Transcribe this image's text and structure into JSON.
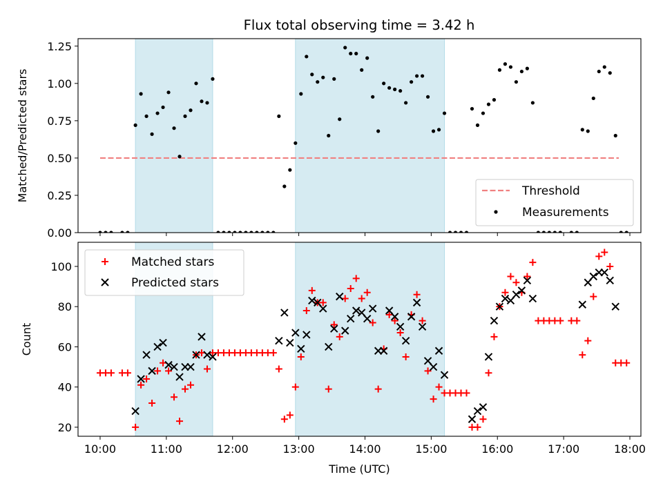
{
  "title": "Flux total observing time = 3.42 h",
  "shade_color": "#add8e6",
  "threshold_color": "#f08080",
  "matched_color": "#ff0000",
  "predicted_color": "#000000",
  "chart_data": [
    {
      "type": "scatter",
      "title": "Flux total observing time = 3.42 h",
      "xlabel": "",
      "ylabel": "Matched/Predicted stars",
      "xlim": [
        "09:40",
        "18:10"
      ],
      "ylim": [
        0,
        1.3
      ],
      "xticks": [
        "10:00",
        "11:00",
        "12:00",
        "13:00",
        "14:00",
        "15:00",
        "16:00",
        "17:00",
        "18:00"
      ],
      "yticks": [
        "0.00",
        "0.25",
        "0.50",
        "0.75",
        "1.00",
        "1.25"
      ],
      "shaded_intervals": [
        [
          "10:32",
          "11:42"
        ],
        [
          "12:57",
          "15:12"
        ]
      ],
      "legend": {
        "placement": "lower-right",
        "entries": [
          "Threshold",
          "Measurements"
        ]
      },
      "threshold": {
        "name": "Threshold",
        "y": 0.5,
        "x": [
          "10:00",
          "17:50"
        ]
      },
      "series": [
        {
          "name": "Measurements",
          "points": [
            [
              "10:00",
              0.0
            ],
            [
              "10:05",
              0.0
            ],
            [
              "10:10",
              0.0
            ],
            [
              "10:20",
              0.0
            ],
            [
              "10:25",
              0.0
            ],
            [
              "10:32",
              0.72
            ],
            [
              "10:37",
              0.93
            ],
            [
              "10:42",
              0.78
            ],
            [
              "10:47",
              0.66
            ],
            [
              "10:52",
              0.8
            ],
            [
              "10:57",
              0.84
            ],
            [
              "11:02",
              0.94
            ],
            [
              "11:07",
              0.7
            ],
            [
              "11:12",
              0.51
            ],
            [
              "11:17",
              0.78
            ],
            [
              "11:22",
              0.82
            ],
            [
              "11:27",
              1.0
            ],
            [
              "11:32",
              0.88
            ],
            [
              "11:37",
              0.87
            ],
            [
              "11:42",
              1.03
            ],
            [
              "11:47",
              0.0
            ],
            [
              "11:52",
              0.0
            ],
            [
              "11:57",
              0.0
            ],
            [
              "12:02",
              0.0
            ],
            [
              "12:07",
              0.0
            ],
            [
              "12:12",
              0.0
            ],
            [
              "12:17",
              0.0
            ],
            [
              "12:22",
              0.0
            ],
            [
              "12:27",
              0.0
            ],
            [
              "12:32",
              0.0
            ],
            [
              "12:37",
              0.0
            ],
            [
              "12:42",
              0.78
            ],
            [
              "12:47",
              0.31
            ],
            [
              "12:52",
              0.42
            ],
            [
              "12:57",
              0.6
            ],
            [
              "13:02",
              0.93
            ],
            [
              "13:07",
              1.18
            ],
            [
              "13:12",
              1.06
            ],
            [
              "13:17",
              1.01
            ],
            [
              "13:22",
              1.04
            ],
            [
              "13:27",
              0.65
            ],
            [
              "13:32",
              1.03
            ],
            [
              "13:37",
              0.76
            ],
            [
              "13:42",
              1.24
            ],
            [
              "13:47",
              1.2
            ],
            [
              "13:52",
              1.2
            ],
            [
              "13:57",
              1.09
            ],
            [
              "14:02",
              1.17
            ],
            [
              "14:07",
              0.91
            ],
            [
              "14:12",
              0.68
            ],
            [
              "14:17",
              1.0
            ],
            [
              "14:22",
              0.97
            ],
            [
              "14:27",
              0.96
            ],
            [
              "14:32",
              0.95
            ],
            [
              "14:37",
              0.87
            ],
            [
              "14:42",
              1.01
            ],
            [
              "14:47",
              1.05
            ],
            [
              "14:52",
              1.05
            ],
            [
              "14:57",
              0.91
            ],
            [
              "15:02",
              0.68
            ],
            [
              "15:07",
              0.69
            ],
            [
              "15:12",
              0.8
            ],
            [
              "15:17",
              0.0
            ],
            [
              "15:22",
              0.0
            ],
            [
              "15:27",
              0.0
            ],
            [
              "15:32",
              0.0
            ],
            [
              "15:37",
              0.83
            ],
            [
              "15:42",
              0.72
            ],
            [
              "15:47",
              0.8
            ],
            [
              "15:52",
              0.86
            ],
            [
              "15:57",
              0.89
            ],
            [
              "16:02",
              1.09
            ],
            [
              "16:07",
              1.13
            ],
            [
              "16:12",
              1.11
            ],
            [
              "16:17",
              1.01
            ],
            [
              "16:22",
              1.08
            ],
            [
              "16:27",
              1.1
            ],
            [
              "16:32",
              0.87
            ],
            [
              "16:37",
              0.0
            ],
            [
              "16:42",
              0.0
            ],
            [
              "16:47",
              0.0
            ],
            [
              "16:52",
              0.0
            ],
            [
              "16:57",
              0.0
            ],
            [
              "17:07",
              0.0
            ],
            [
              "17:12",
              0.0
            ],
            [
              "17:17",
              0.69
            ],
            [
              "17:22",
              0.68
            ],
            [
              "17:27",
              0.9
            ],
            [
              "17:32",
              1.08
            ],
            [
              "17:37",
              1.11
            ],
            [
              "17:42",
              1.07
            ],
            [
              "17:47",
              0.65
            ],
            [
              "17:52",
              0.0
            ],
            [
              "17:57",
              0.0
            ]
          ]
        }
      ]
    },
    {
      "type": "scatter",
      "title": "",
      "xlabel": "Time (UTC)",
      "ylabel": "Count",
      "xlim": [
        "09:40",
        "18:10"
      ],
      "ylim": [
        15.5,
        112
      ],
      "xticks": [
        "10:00",
        "11:00",
        "12:00",
        "13:00",
        "14:00",
        "15:00",
        "16:00",
        "17:00",
        "18:00"
      ],
      "yticks": [
        "20",
        "40",
        "60",
        "80",
        "100"
      ],
      "shaded_intervals": [
        [
          "10:32",
          "11:42"
        ],
        [
          "12:57",
          "15:12"
        ]
      ],
      "legend": {
        "placement": "upper-left",
        "entries": [
          "Matched stars",
          "Predicted stars"
        ]
      },
      "series": [
        {
          "name": "Matched stars",
          "marker": "plus",
          "points": [
            [
              "10:00",
              47
            ],
            [
              "10:05",
              47
            ],
            [
              "10:10",
              47
            ],
            [
              "10:20",
              47
            ],
            [
              "10:25",
              47
            ],
            [
              "10:32",
              20
            ],
            [
              "10:37",
              41
            ],
            [
              "10:42",
              44
            ],
            [
              "10:47",
              32
            ],
            [
              "10:52",
              48
            ],
            [
              "10:57",
              52
            ],
            [
              "11:02",
              48
            ],
            [
              "11:07",
              35
            ],
            [
              "11:12",
              23
            ],
            [
              "11:17",
              39
            ],
            [
              "11:22",
              41
            ],
            [
              "11:27",
              56
            ],
            [
              "11:32",
              57
            ],
            [
              "11:37",
              49
            ],
            [
              "11:42",
              57
            ],
            [
              "11:47",
              57
            ],
            [
              "11:52",
              57
            ],
            [
              "11:57",
              57
            ],
            [
              "12:02",
              57
            ],
            [
              "12:07",
              57
            ],
            [
              "12:12",
              57
            ],
            [
              "12:17",
              57
            ],
            [
              "12:22",
              57
            ],
            [
              "12:27",
              57
            ],
            [
              "12:32",
              57
            ],
            [
              "12:37",
              57
            ],
            [
              "12:42",
              49
            ],
            [
              "12:47",
              24
            ],
            [
              "12:52",
              26
            ],
            [
              "12:57",
              40
            ],
            [
              "13:02",
              55
            ],
            [
              "13:07",
              78
            ],
            [
              "13:12",
              88
            ],
            [
              "13:17",
              82
            ],
            [
              "13:22",
              82
            ],
            [
              "13:27",
              39
            ],
            [
              "13:32",
              71
            ],
            [
              "13:37",
              65
            ],
            [
              "13:42",
              84
            ],
            [
              "13:47",
              89
            ],
            [
              "13:52",
              94
            ],
            [
              "13:57",
              84
            ],
            [
              "14:02",
              87
            ],
            [
              "14:07",
              72
            ],
            [
              "14:12",
              39
            ],
            [
              "14:17",
              59
            ],
            [
              "14:22",
              76
            ],
            [
              "14:27",
              73
            ],
            [
              "14:32",
              67
            ],
            [
              "14:37",
              55
            ],
            [
              "14:42",
              76
            ],
            [
              "14:47",
              86
            ],
            [
              "14:52",
              73
            ],
            [
              "14:57",
              48
            ],
            [
              "15:02",
              34
            ],
            [
              "15:07",
              40
            ],
            [
              "15:12",
              37
            ],
            [
              "15:17",
              37
            ],
            [
              "15:22",
              37
            ],
            [
              "15:27",
              37
            ],
            [
              "15:32",
              37
            ],
            [
              "15:37",
              20
            ],
            [
              "15:42",
              20
            ],
            [
              "15:47",
              24
            ],
            [
              "15:52",
              47
            ],
            [
              "15:57",
              65
            ],
            [
              "16:02",
              80
            ],
            [
              "16:07",
              87
            ],
            [
              "16:12",
              95
            ],
            [
              "16:17",
              92
            ],
            [
              "16:22",
              87
            ],
            [
              "16:27",
              95
            ],
            [
              "16:32",
              102
            ],
            [
              "16:37",
              73
            ],
            [
              "16:42",
              73
            ],
            [
              "16:47",
              73
            ],
            [
              "16:52",
              73
            ],
            [
              "16:57",
              73
            ],
            [
              "17:07",
              73
            ],
            [
              "17:12",
              73
            ],
            [
              "17:17",
              56
            ],
            [
              "17:22",
              63
            ],
            [
              "17:27",
              85
            ],
            [
              "17:32",
              105
            ],
            [
              "17:37",
              107
            ],
            [
              "17:42",
              100
            ],
            [
              "17:47",
              52
            ],
            [
              "17:52",
              52
            ],
            [
              "17:57",
              52
            ]
          ]
        },
        {
          "name": "Predicted stars",
          "marker": "x",
          "points": [
            [
              "10:32",
              28
            ],
            [
              "10:37",
              44
            ],
            [
              "10:42",
              56
            ],
            [
              "10:47",
              48
            ],
            [
              "10:52",
              60
            ],
            [
              "10:57",
              62
            ],
            [
              "11:02",
              51
            ],
            [
              "11:07",
              50
            ],
            [
              "11:12",
              45
            ],
            [
              "11:17",
              50
            ],
            [
              "11:22",
              50
            ],
            [
              "11:27",
              56
            ],
            [
              "11:32",
              65
            ],
            [
              "11:37",
              56
            ],
            [
              "11:42",
              55
            ],
            [
              "12:42",
              63
            ],
            [
              "12:47",
              77
            ],
            [
              "12:52",
              62
            ],
            [
              "12:57",
              67
            ],
            [
              "13:02",
              59
            ],
            [
              "13:07",
              66
            ],
            [
              "13:12",
              83
            ],
            [
              "13:17",
              82
            ],
            [
              "13:22",
              79
            ],
            [
              "13:27",
              60
            ],
            [
              "13:32",
              69
            ],
            [
              "13:37",
              85
            ],
            [
              "13:42",
              68
            ],
            [
              "13:47",
              74
            ],
            [
              "13:52",
              78
            ],
            [
              "13:57",
              77
            ],
            [
              "14:02",
              74
            ],
            [
              "14:07",
              79
            ],
            [
              "14:12",
              58
            ],
            [
              "14:17",
              58
            ],
            [
              "14:22",
              78
            ],
            [
              "14:27",
              75
            ],
            [
              "14:32",
              70
            ],
            [
              "14:37",
              63
            ],
            [
              "14:42",
              75
            ],
            [
              "14:47",
              82
            ],
            [
              "14:52",
              70
            ],
            [
              "14:57",
              53
            ],
            [
              "15:02",
              50
            ],
            [
              "15:07",
              58
            ],
            [
              "15:12",
              46
            ],
            [
              "15:37",
              24
            ],
            [
              "15:42",
              28
            ],
            [
              "15:47",
              30
            ],
            [
              "15:52",
              55
            ],
            [
              "15:57",
              73
            ],
            [
              "16:02",
              80
            ],
            [
              "16:07",
              84
            ],
            [
              "16:12",
              83
            ],
            [
              "16:17",
              86
            ],
            [
              "16:22",
              88
            ],
            [
              "16:27",
              93
            ],
            [
              "16:32",
              84
            ],
            [
              "17:17",
              81
            ],
            [
              "17:22",
              92
            ],
            [
              "17:27",
              95
            ],
            [
              "17:32",
              97
            ],
            [
              "17:37",
              97
            ],
            [
              "17:42",
              93
            ],
            [
              "17:47",
              80
            ]
          ]
        }
      ]
    }
  ]
}
